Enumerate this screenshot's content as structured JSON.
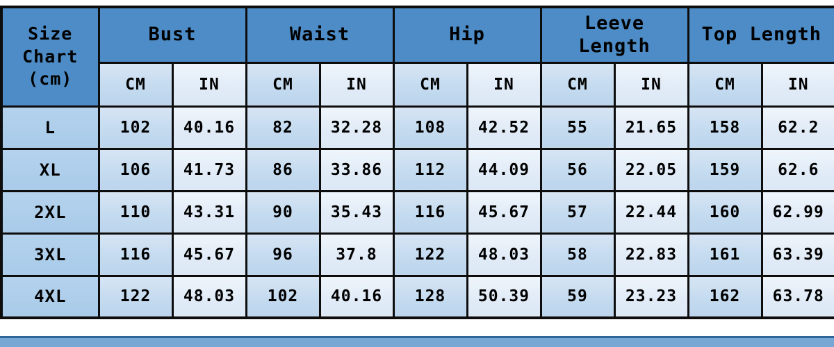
{
  "colors": {
    "header_blue": "#4d8cc6",
    "label_column_blue": "#aecdea",
    "cm_cell_blue": "#c5dcf0",
    "in_cell_blue": "#e4eef8",
    "grid_border_black": "#0d0d0d",
    "bottom_bar_blue": "#78a7d3",
    "bottom_bar_line_blue": "#2e659b",
    "text_black": "#000000",
    "page_background": "#ffffff"
  },
  "chart_data": {
    "type": "table",
    "title": "Size Chart (cm)",
    "corner": {
      "lines": [
        "Size",
        "Chart",
        "(cm)"
      ]
    },
    "groups": [
      {
        "label": "Bust",
        "lines": [
          "Bust"
        ]
      },
      {
        "label": "Waist",
        "lines": [
          "Waist"
        ]
      },
      {
        "label": "Hip",
        "lines": [
          "Hip"
        ]
      },
      {
        "label": "Leeve Length",
        "lines": [
          "Leeve",
          "Length"
        ]
      },
      {
        "label": "Top Length",
        "lines": [
          "Top Length"
        ]
      }
    ],
    "units": [
      "CM",
      "IN",
      "CM",
      "IN",
      "CM",
      "IN",
      "CM",
      "IN",
      "CM",
      "IN"
    ],
    "rows": [
      {
        "size": "L",
        "values": [
          "102",
          "40.16",
          "82",
          "32.28",
          "108",
          "42.52",
          "55",
          "21.65",
          "158",
          "62.2"
        ]
      },
      {
        "size": "XL",
        "values": [
          "106",
          "41.73",
          "86",
          "33.86",
          "112",
          "44.09",
          "56",
          "22.05",
          "159",
          "62.6"
        ]
      },
      {
        "size": "2XL",
        "values": [
          "110",
          "43.31",
          "90",
          "35.43",
          "116",
          "45.67",
          "57",
          "22.44",
          "160",
          "62.99"
        ]
      },
      {
        "size": "3XL",
        "values": [
          "116",
          "45.67",
          "96",
          "37.8",
          "122",
          "48.03",
          "58",
          "22.83",
          "161",
          "63.39"
        ]
      },
      {
        "size": "4XL",
        "values": [
          "122",
          "48.03",
          "102",
          "40.16",
          "128",
          "50.39",
          "59",
          "23.23",
          "162",
          "63.78"
        ]
      }
    ]
  }
}
